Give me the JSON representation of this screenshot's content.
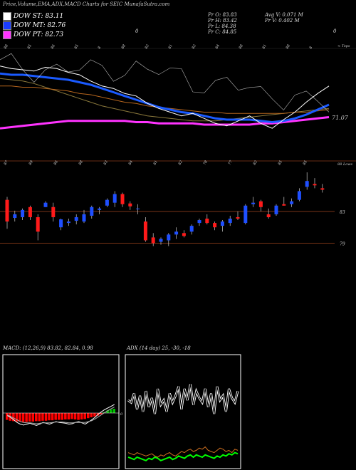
{
  "title": "Price,Volume,EMA,ADX,MACD Charts for SEIC MunafaSutra.com",
  "legend": [
    {
      "label": "DOW ST: 83.11",
      "color": "#ffffff"
    },
    {
      "label": "DOW MT: 82.76",
      "color": "#1a3cff"
    },
    {
      "label": "DOW PT: 82.73",
      "color": "#ff33ff"
    }
  ],
  "info": {
    "pr_o": "Pr O: 83.83",
    "pr_h": "Pr H: 83.42",
    "pr_l": "Pr L: 84.38",
    "pr_c": "Pr C: 84.85",
    "avg_v": "Avg V: 0.071 M",
    "pr_v": "Pr V: 0.402 M",
    "zero1": "0",
    "zero2": "0"
  },
  "top_ticks": [
    "88",
    "85",
    "86",
    "85",
    "8",
    "88",
    "82",
    "81",
    "82",
    "84",
    "88",
    "81",
    "88",
    "8"
  ],
  "top_right_label": "< Tops",
  "ema_value_label": "71.07",
  "bottom_ticks": [
    "87",
    "89",
    "86",
    "88",
    "83",
    "84",
    "81",
    "82",
    "78",
    "77",
    "82",
    "85",
    "85"
  ],
  "right_label_top": "88 Lows",
  "price_labels": [
    "83",
    "79"
  ],
  "colors": {
    "up": "#1f4fff",
    "down": "#ff1a1a",
    "grid": "#8a3c1a",
    "ema_blue": "#1a5aff",
    "ema_magenta": "#ff33ff",
    "macd_green": "#00c000",
    "macd_red": "#ff0000",
    "adx_green": "#00ff00",
    "adx_orange": "#d07020"
  },
  "chart_data": [
    {
      "type": "line",
      "name": "ema-panel",
      "series": [
        {
          "name": "DOW ST",
          "values": [
            85.2,
            85.0,
            84.9,
            84.8,
            85.1,
            85.0,
            84.7,
            84.5,
            84.0,
            83.6,
            83.4,
            83.0,
            82.8,
            82.2,
            81.8,
            81.5,
            81.2,
            81.4,
            81.0,
            80.6,
            80.4,
            80.8,
            81.2,
            80.6,
            80.2,
            80.9,
            81.5,
            82.3,
            83.0,
            83.6
          ]
        },
        {
          "name": "DOW MT",
          "values": [
            84.6,
            84.5,
            84.5,
            84.4,
            84.3,
            84.2,
            84.1,
            83.9,
            83.7,
            83.4,
            83.1,
            82.8,
            82.5,
            82.2,
            81.9,
            81.7,
            81.5,
            81.4,
            81.2,
            81.0,
            80.9,
            80.9,
            80.9,
            80.8,
            80.7,
            80.8,
            81.0,
            81.3,
            81.7,
            82.1
          ]
        },
        {
          "name": "DOW PT",
          "values": [
            80.2,
            80.3,
            80.4,
            80.5,
            80.6,
            80.7,
            80.8,
            80.8,
            80.8,
            80.8,
            80.8,
            80.8,
            80.7,
            80.7,
            80.6,
            80.6,
            80.6,
            80.6,
            80.5,
            80.5,
            80.5,
            80.5,
            80.5,
            80.6,
            80.6,
            80.7,
            80.8,
            80.9,
            81.0,
            81.1
          ]
        }
      ]
    },
    {
      "type": "candlestick",
      "name": "price-panel",
      "ohlc": [
        [
          85.0,
          85.4,
          81.0,
          82.0
        ],
        [
          82.5,
          83.5,
          82.0,
          83.0
        ],
        [
          82.6,
          83.8,
          82.2,
          83.6
        ],
        [
          84.0,
          84.2,
          82.2,
          82.6
        ],
        [
          82.6,
          83.0,
          79.4,
          80.6
        ],
        [
          84.0,
          84.8,
          84.0,
          84.6
        ],
        [
          84.0,
          84.6,
          82.0,
          82.6
        ],
        [
          81.2,
          82.4,
          80.8,
          82.3
        ],
        [
          81.8,
          82.4,
          81.4,
          82.0
        ],
        [
          82.1,
          83.0,
          81.6,
          82.6
        ],
        [
          82.0,
          83.6,
          81.8,
          83.0
        ],
        [
          82.8,
          84.2,
          82.4,
          84.0
        ],
        [
          83.6,
          84.0,
          83.0,
          83.8
        ],
        [
          84.2,
          85.2,
          84.0,
          85.0
        ],
        [
          84.6,
          86.2,
          84.0,
          85.8
        ],
        [
          85.8,
          86.0,
          84.0,
          84.4
        ],
        [
          84.5,
          84.8,
          83.6,
          84.1
        ],
        [
          83.8,
          84.4,
          83.0,
          83.8
        ],
        [
          82.0,
          82.6,
          79.2,
          79.4
        ],
        [
          79.8,
          80.4,
          78.6,
          79.0
        ],
        [
          79.2,
          79.8,
          78.8,
          79.6
        ],
        [
          79.4,
          80.4,
          78.6,
          80.2
        ],
        [
          80.2,
          81.2,
          79.6,
          80.6
        ],
        [
          80.4,
          80.8,
          79.8,
          80.0
        ],
        [
          80.6,
          81.6,
          80.2,
          81.4
        ],
        [
          81.8,
          82.4,
          81.4,
          82.2
        ],
        [
          82.4,
          83.0,
          81.6,
          81.8
        ],
        [
          81.8,
          82.0,
          80.8,
          81.2
        ],
        [
          81.4,
          82.2,
          80.6,
          82.0
        ],
        [
          81.8,
          82.8,
          81.4,
          82.4
        ],
        [
          82.6,
          83.4,
          82.2,
          82.4
        ],
        [
          81.8,
          84.4,
          81.6,
          84.2
        ],
        [
          84.4,
          85.4,
          84.0,
          84.6
        ],
        [
          84.8,
          85.0,
          83.4,
          84.0
        ],
        [
          83.0,
          83.8,
          82.4,
          82.6
        ],
        [
          83.0,
          84.4,
          82.8,
          84.2
        ],
        [
          84.4,
          85.4,
          84.2,
          84.2
        ],
        [
          84.4,
          85.2,
          84.0,
          84.8
        ],
        [
          85.0,
          86.6,
          84.8,
          86.2
        ],
        [
          86.8,
          88.8,
          86.4,
          87.6
        ],
        [
          87.2,
          88.0,
          86.6,
          87.0
        ],
        [
          86.6,
          87.2,
          86.0,
          86.4
        ]
      ],
      "ylim": [
        76,
        89
      ]
    },
    {
      "type": "bar",
      "name": "macd-panel",
      "header": "MACD: (12,26,9) 83.82, 82.84, 0.98",
      "values": [
        -1.6,
        -1.8,
        -1.9,
        -2.0,
        -2.0,
        -2.1,
        -2.1,
        -2.0,
        -2.0,
        -1.9,
        -1.9,
        -1.8,
        -1.8,
        -1.7,
        -1.7,
        -1.6,
        -1.6,
        -1.6,
        -1.5,
        -1.5,
        -1.4,
        -1.5,
        -1.6,
        -1.5,
        -1.4,
        -1.2,
        -1.0,
        -0.8,
        -0.6,
        -0.3,
        0.2,
        0.6,
        0.8,
        1.0
      ],
      "macd": [
        -0.6,
        -1.0,
        -1.6,
        -2.2,
        -2.6,
        -2.8,
        -2.6,
        -2.4,
        -2.7,
        -2.9,
        -2.6,
        -2.2,
        -2.4,
        -2.6,
        -2.3,
        -2.0,
        -2.2,
        -2.3,
        -2.4,
        -2.6,
        -2.5,
        -2.2,
        -2.0,
        -2.3,
        -2.6,
        -2.1,
        -1.6,
        -1.0,
        -0.3,
        0.3,
        0.8,
        1.2,
        1.6,
        2.0
      ],
      "signal": [
        -0.4,
        -0.8,
        -1.2,
        -1.6,
        -2.0,
        -2.2,
        -2.3,
        -2.3,
        -2.4,
        -2.5,
        -2.4,
        -2.3,
        -2.3,
        -2.3,
        -2.2,
        -2.1,
        -2.1,
        -2.1,
        -2.2,
        -2.3,
        -2.3,
        -2.2,
        -2.2,
        -2.2,
        -2.2,
        -2.0,
        -1.8,
        -1.4,
        -0.9,
        -0.4,
        0.1,
        0.6,
        1.0,
        1.4
      ]
    },
    {
      "type": "line",
      "name": "adx-panel",
      "header": "ADX (14 day) 25, -30, -18",
      "series": [
        {
          "name": "DI+",
          "values": [
            60,
            58,
            66,
            52,
            64,
            50,
            68,
            54,
            62,
            48,
            70,
            56,
            60,
            50,
            66,
            58,
            64,
            72,
            52,
            70,
            60,
            74,
            56,
            68,
            62,
            58,
            70,
            54,
            66,
            48,
            72,
            60,
            64,
            50,
            70,
            62,
            58,
            68
          ]
        },
        {
          "name": "DI-",
          "values": [
            14,
            13,
            12,
            14,
            13,
            12,
            11,
            12,
            13,
            11,
            10,
            12,
            11,
            13,
            14,
            12,
            11,
            13,
            15,
            14,
            16,
            17,
            15,
            16,
            18,
            17,
            19,
            16,
            15,
            14,
            16,
            18,
            17,
            15,
            16,
            14,
            17,
            16
          ]
        },
        {
          "name": "ADX",
          "values": [
            10,
            9,
            8,
            10,
            9,
            8,
            7,
            9,
            8,
            10,
            9,
            7,
            8,
            9,
            10,
            8,
            9,
            11,
            10,
            9,
            11,
            12,
            10,
            12,
            11,
            10,
            12,
            11,
            10,
            9,
            11,
            10,
            12,
            11,
            13,
            12,
            14,
            13
          ]
        }
      ]
    }
  ]
}
